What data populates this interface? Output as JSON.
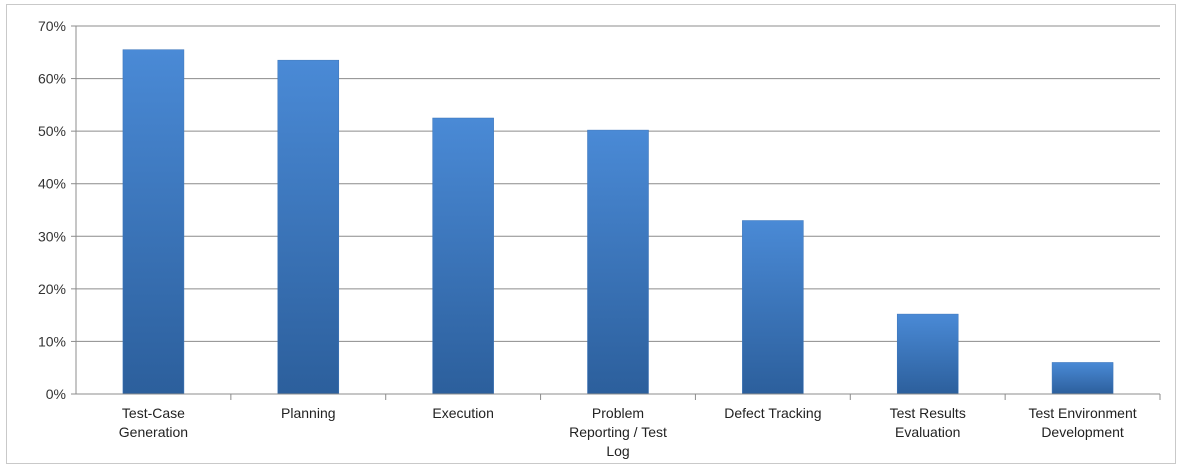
{
  "chart_data": {
    "type": "bar",
    "title": "",
    "xlabel": "",
    "ylabel": "",
    "categories": [
      "Test-Case Generation",
      "Planning",
      "Execution",
      "Problem Reporting / Test Log",
      "Defect Tracking",
      "Test Results Evaluation",
      "Test Environment Development"
    ],
    "category_label_lines": [
      [
        "Test-Case",
        "Generation"
      ],
      [
        "Planning"
      ],
      [
        "Execution"
      ],
      [
        "Problem",
        "Reporting / Test",
        "Log"
      ],
      [
        "Defect Tracking"
      ],
      [
        "Test Results",
        "Evaluation"
      ],
      [
        "Test Environment",
        "Development"
      ]
    ],
    "values": [
      65.5,
      63.5,
      52.5,
      50.2,
      33.0,
      15.2,
      6.0
    ],
    "ylim": [
      0,
      70
    ],
    "yticks": [
      0,
      10,
      20,
      30,
      40,
      50,
      60,
      70
    ],
    "ytick_labels": [
      "0%",
      "10%",
      "20%",
      "30%",
      "40%",
      "50%",
      "60%",
      "70%"
    ],
    "grid": true,
    "legend": "none",
    "colors": {
      "bar_light": "#4a8ad6",
      "bar_dark": "#2c5f9c",
      "gridline": "#8c8c8c",
      "axis": "#8c8c8c"
    }
  }
}
